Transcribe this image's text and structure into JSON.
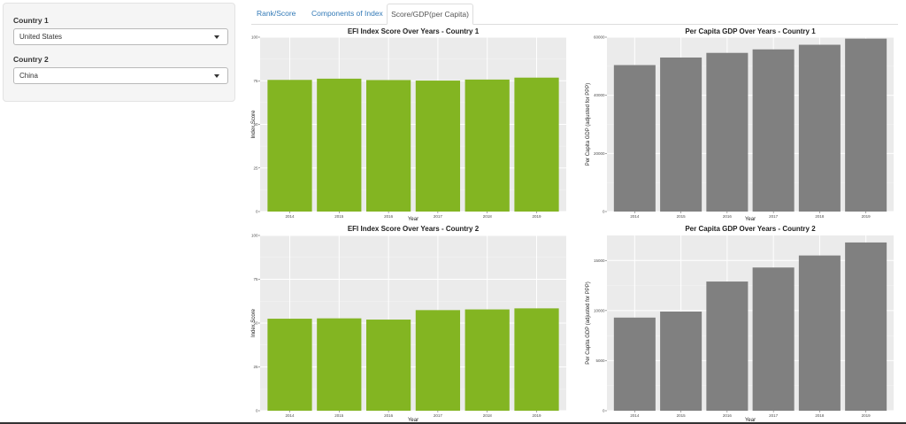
{
  "sidebar": {
    "country1_label": "Country 1",
    "country1_value": "United States",
    "country2_label": "Country 2",
    "country2_value": "China"
  },
  "tabs": [
    {
      "label": "Rank/Score",
      "active": false
    },
    {
      "label": "Components of Index",
      "active": false
    },
    {
      "label": "Score/GDP(per Capita)",
      "active": true
    }
  ],
  "colors": {
    "efi_bar": "#83b522",
    "gdp_bar": "#808080",
    "panel_bg": "#ebebeb",
    "grid": "#ffffff"
  },
  "chart_data": [
    {
      "type": "bar",
      "title": "EFI Index Score Over Years - Country 1",
      "xlabel": "Year",
      "ylabel": "Index Score",
      "categories": [
        "2014",
        "2015",
        "2016",
        "2017",
        "2018",
        "2019"
      ],
      "values": [
        75.5,
        76.2,
        75.4,
        75.1,
        75.7,
        76.8
      ],
      "ylim": [
        0,
        100
      ],
      "yticks": [
        0,
        25,
        50,
        75,
        100
      ],
      "ytick_labels": [
        "0",
        "25",
        "50",
        "75",
        "100"
      ],
      "grid": true
    },
    {
      "type": "bar",
      "title": "Per Capita GDP Over Years - Country 1",
      "xlabel": "Year",
      "ylabel": "Per Capita GDP (adjusted for PPP)",
      "categories": [
        "2014",
        "2015",
        "2016",
        "2017",
        "2018",
        "2019"
      ],
      "values": [
        50400,
        53000,
        54600,
        55800,
        57400,
        59500
      ],
      "ylim": [
        0,
        60000
      ],
      "yticks": [
        0,
        20000,
        40000,
        60000
      ],
      "ytick_labels": [
        "0",
        "20000",
        "40000",
        "60000"
      ],
      "grid": true
    },
    {
      "type": "bar",
      "title": "EFI Index Score Over Years - Country 2",
      "xlabel": "Year",
      "ylabel": "Index Score",
      "categories": [
        "2014",
        "2015",
        "2016",
        "2017",
        "2018",
        "2019"
      ],
      "values": [
        52.5,
        52.7,
        52.0,
        57.4,
        57.8,
        58.4
      ],
      "ylim": [
        0,
        100
      ],
      "yticks": [
        0,
        25,
        50,
        75,
        100
      ],
      "ytick_labels": [
        "0",
        "25",
        "50",
        "75",
        "100"
      ],
      "grid": true
    },
    {
      "type": "bar",
      "title": "Per Capita GDP Over Years - Country 2",
      "xlabel": "Year",
      "ylabel": "Per Capita GDP (adjusted for PPP)",
      "categories": [
        "2014",
        "2015",
        "2016",
        "2017",
        "2018",
        "2019"
      ],
      "values": [
        9300,
        9900,
        12900,
        14300,
        15500,
        16800
      ],
      "ylim": [
        0,
        17500
      ],
      "yticks": [
        0,
        5000,
        10000,
        15000
      ],
      "ytick_labels": [
        "0",
        "5000",
        "10000",
        "15000"
      ],
      "grid": true
    }
  ]
}
